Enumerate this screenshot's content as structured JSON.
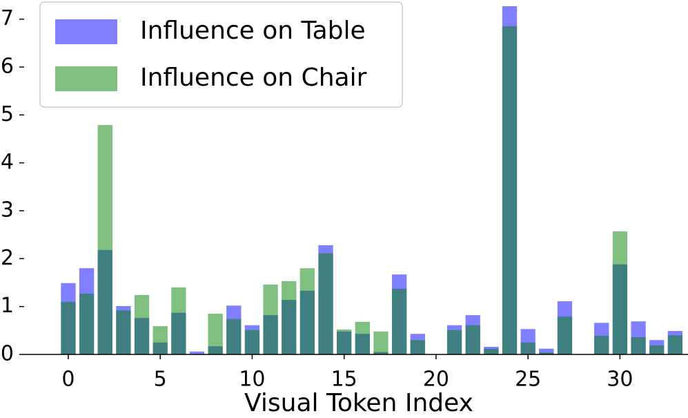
{
  "chart_data": {
    "type": "bar",
    "xlabel": "Visual Token Index",
    "x": [
      0,
      1,
      2,
      3,
      4,
      5,
      6,
      7,
      8,
      9,
      10,
      11,
      12,
      13,
      14,
      15,
      16,
      17,
      18,
      19,
      20,
      21,
      22,
      23,
      24,
      25,
      26,
      27,
      28,
      29,
      30,
      31,
      32,
      33
    ],
    "series": [
      {
        "name": "Influence on Table",
        "color": "#0000ff",
        "values": [
          1.49,
          1.8,
          2.18,
          1.01,
          0.76,
          0.25,
          0.87,
          0.06,
          0.17,
          1.02,
          0.61,
          0.82,
          1.14,
          1.33,
          2.28,
          0.48,
          0.43,
          0.05,
          1.67,
          0.43,
          0,
          0.61,
          0.82,
          0.16,
          7.27,
          0.53,
          0.12,
          1.11,
          0,
          0.66,
          1.88,
          0.69,
          0.3,
          0.49
        ]
      },
      {
        "name": "Influence on Chair",
        "color": "#008000",
        "values": [
          1.1,
          1.27,
          4.79,
          0.92,
          1.24,
          0.59,
          1.4,
          0,
          0.85,
          0.74,
          0.51,
          1.46,
          1.53,
          1.8,
          2.11,
          0.52,
          0.68,
          0.48,
          1.37,
          0.3,
          0,
          0.51,
          0.61,
          0.12,
          6.85,
          0.25,
          0.04,
          0.79,
          0,
          0.39,
          2.57,
          0.36,
          0.19,
          0.4
        ]
      }
    ],
    "alpha": 0.5,
    "xlim": [
      -2.4,
      33.7
    ],
    "xticks": [
      0,
      5,
      10,
      15,
      20,
      25,
      30
    ],
    "ylim": [
      0,
      7.4
    ],
    "yticks": [
      0,
      1,
      2,
      3,
      4,
      5,
      6,
      7
    ],
    "legend": "upper left"
  }
}
